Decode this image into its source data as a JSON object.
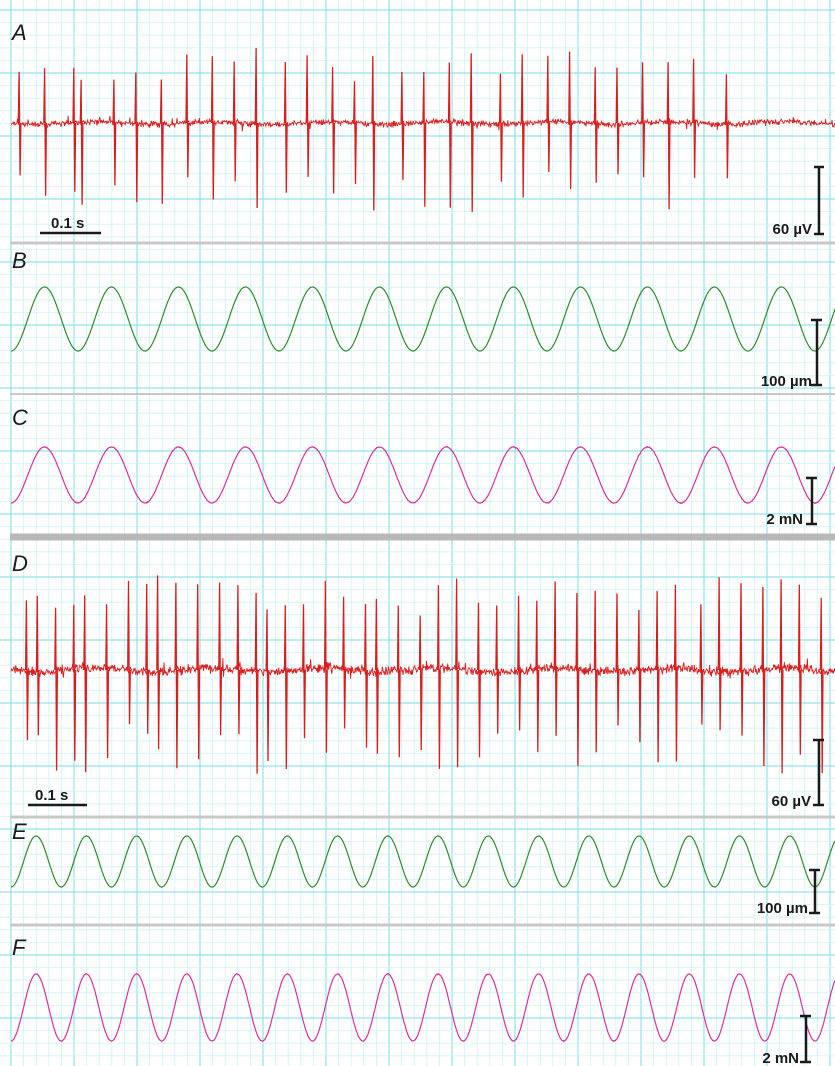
{
  "colors": {
    "grid_major": "#8fe3ea",
    "grid_minor": "#cdf3f6",
    "divider": "#c8c8c8",
    "divider_thick": "#b8b8b8",
    "spikes": "#d81e1e",
    "displacement": "#2e8b2e",
    "force": "#d6309e",
    "scalebar": "#1a1a1a"
  },
  "chart_data": [
    {
      "type": "line",
      "panel": "A",
      "signal": "spike-train",
      "series": [
        {
          "color": "#d81e1e"
        }
      ],
      "spike_times_s": [
        0.01,
        0.045,
        0.085,
        0.095,
        0.14,
        0.17,
        0.205,
        0.24,
        0.275,
        0.305,
        0.335,
        0.375,
        0.405,
        0.44,
        0.47,
        0.495,
        0.535,
        0.565,
        0.6,
        0.63,
        0.67,
        0.7,
        0.735,
        0.765,
        0.8,
        0.83,
        0.865,
        0.9,
        0.935,
        0.98
      ],
      "duration_s": 1.13,
      "scalebars": {
        "time": {
          "label": "0.1 s",
          "value_s": 0.1
        },
        "amplitude": {
          "label": "60 µV",
          "value": 60
        }
      }
    },
    {
      "type": "line",
      "panel": "B",
      "signal": "sine",
      "series": [
        {
          "color": "#2e8b2e"
        }
      ],
      "cycles_visible": 12.3,
      "scalebars": {
        "amplitude": {
          "label": "100 µm",
          "value": 100
        }
      }
    },
    {
      "type": "line",
      "panel": "C",
      "signal": "sine",
      "series": [
        {
          "color": "#d6309e"
        }
      ],
      "cycles_visible": 12.3,
      "scalebars": {
        "amplitude": {
          "label": "2 mN",
          "value": 2
        }
      }
    },
    {
      "type": "line",
      "panel": "D",
      "signal": "spike-train",
      "series": [
        {
          "color": "#d81e1e"
        }
      ],
      "spike_times_s": [
        0.02,
        0.035,
        0.06,
        0.085,
        0.1,
        0.13,
        0.16,
        0.185,
        0.2,
        0.225,
        0.255,
        0.285,
        0.31,
        0.335,
        0.35,
        0.375,
        0.4,
        0.43,
        0.455,
        0.485,
        0.5,
        0.53,
        0.56,
        0.585,
        0.61,
        0.64,
        0.665,
        0.695,
        0.72,
        0.745,
        0.775,
        0.8,
        0.83,
        0.86,
        0.885,
        0.91,
        0.945,
        0.97,
        1.0,
        1.03,
        1.055,
        1.08,
        1.11
      ],
      "duration_s": 1.13,
      "scalebars": {
        "time": {
          "label": "0.1 s",
          "value_s": 0.1
        },
        "amplitude": {
          "label": "60 µV",
          "value": 60
        }
      }
    },
    {
      "type": "line",
      "panel": "E",
      "signal": "sine",
      "series": [
        {
          "color": "#2e8b2e"
        }
      ],
      "cycles_visible": 16.4,
      "scalebars": {
        "amplitude": {
          "label": "100 µm",
          "value": 100
        }
      }
    },
    {
      "type": "line",
      "panel": "F",
      "signal": "sine",
      "series": [
        {
          "color": "#d6309e"
        }
      ],
      "cycles_visible": 16.4,
      "scalebars": {
        "amplitude": {
          "label": "2 mN",
          "value": 2
        }
      }
    }
  ],
  "panels": {
    "A": {
      "letter": "A",
      "time_label": "0.1 s",
      "amp_label": "60 µV"
    },
    "B": {
      "letter": "B",
      "amp_label": "100 µm"
    },
    "C": {
      "letter": "C",
      "amp_label": "2 mN"
    },
    "D": {
      "letter": "D",
      "time_label": "0.1 s",
      "amp_label": "60 µV"
    },
    "E": {
      "letter": "E",
      "amp_label": "100 µm"
    },
    "F": {
      "letter": "F",
      "amp_label": "2 mN"
    }
  }
}
